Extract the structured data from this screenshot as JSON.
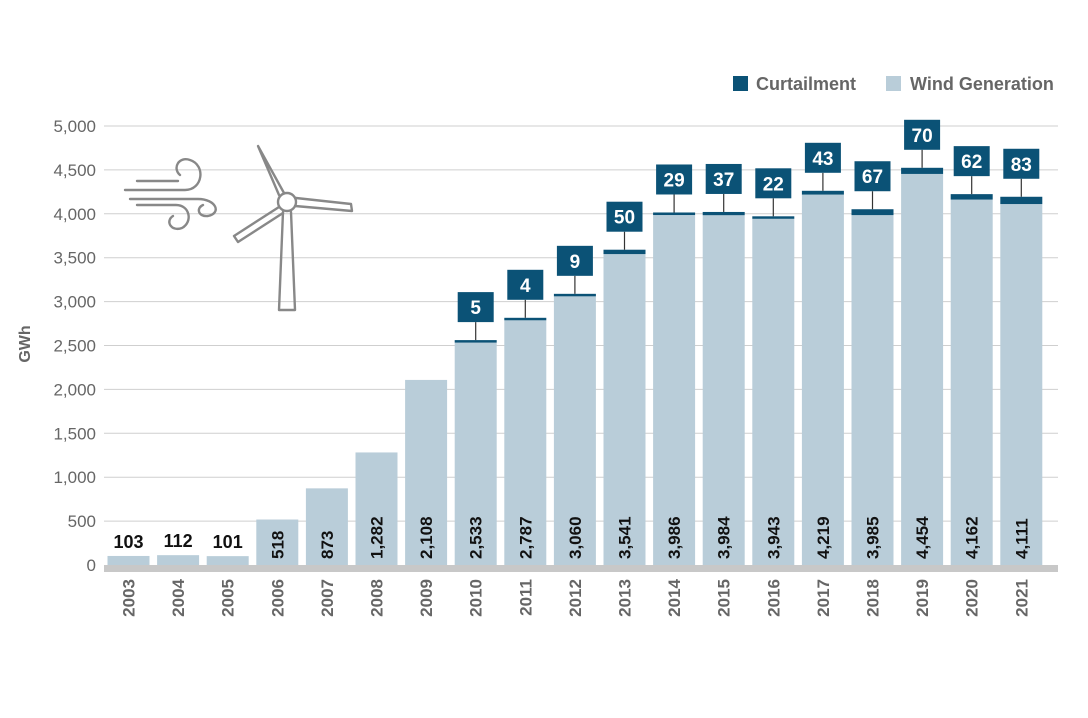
{
  "colors": {
    "wind_generation": "#b9cdd9",
    "curtailment": "#0b5276",
    "axis_text": "#666666",
    "gridline": "#cfcfcf",
    "baseline": "#c8c8c8",
    "label_dark": "#111111",
    "icon_stroke": "#888888"
  },
  "icons": {
    "wind": "wind-icon",
    "turbine": "wind-turbine-icon"
  },
  "chart_data": {
    "type": "bar",
    "stacked": true,
    "title": "",
    "xlabel": "",
    "ylabel": "GWh",
    "ylim": [
      0,
      5000
    ],
    "yticks": [
      0,
      500,
      1000,
      1500,
      2000,
      2500,
      3000,
      3500,
      4000,
      4500,
      5000
    ],
    "ytick_labels": [
      "0",
      "500",
      "1,000",
      "1,500",
      "2,000",
      "2,500",
      "3,000",
      "3,500",
      "4,000",
      "4,500",
      "5,000"
    ],
    "grid": true,
    "legend_position": "top-right",
    "categories": [
      "2003",
      "2004",
      "2005",
      "2006",
      "2007",
      "2008",
      "2009",
      "2010",
      "2011",
      "2012",
      "2013",
      "2014",
      "2015",
      "2016",
      "2017",
      "2018",
      "2019",
      "2020",
      "2021"
    ],
    "series": [
      {
        "name": "Wind Generation",
        "values": [
          103,
          112,
          101,
          518,
          873,
          1282,
          2108,
          2533,
          2787,
          3060,
          3541,
          3986,
          3984,
          3943,
          4219,
          3985,
          4454,
          4162,
          4111
        ],
        "labels": [
          "103",
          "112",
          "101",
          "518",
          "873",
          "1,282",
          "2,108",
          "2,533",
          "2,787",
          "3,060",
          "3,541",
          "3,986",
          "3,984",
          "3,943",
          "4,219",
          "3,985",
          "4,454",
          "4,162",
          "4,111"
        ]
      },
      {
        "name": "Curtailment",
        "values": [
          null,
          null,
          null,
          null,
          null,
          null,
          null,
          5,
          4,
          9,
          50,
          29,
          37,
          22,
          43,
          67,
          70,
          62,
          83
        ],
        "labels": [
          null,
          null,
          null,
          null,
          null,
          null,
          null,
          "5",
          "4",
          "9",
          "50",
          "29",
          "37",
          "22",
          "43",
          "67",
          "70",
          "62",
          "83"
        ]
      }
    ]
  }
}
